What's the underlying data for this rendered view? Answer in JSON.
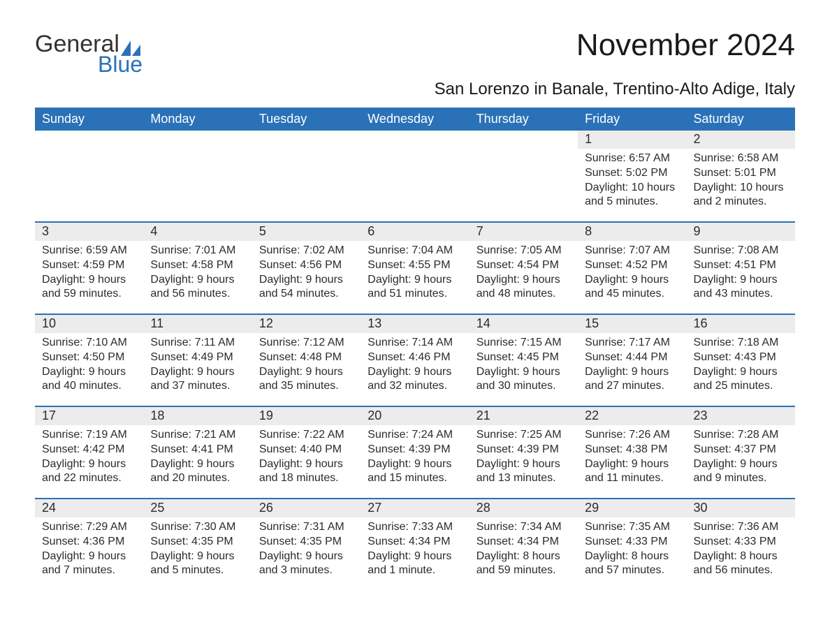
{
  "brand": {
    "general": "General",
    "blue": "Blue",
    "sail_color": "#2a71b8"
  },
  "header": {
    "title": "November 2024",
    "subtitle": "San Lorenzo in Banale, Trentino-Alto Adige, Italy"
  },
  "colors": {
    "header_bg": "#2a71b8",
    "header_text": "#ffffff",
    "daynum_bg": "#ececec",
    "body_text": "#2b2b2b",
    "page_bg": "#ffffff"
  },
  "dayNames": [
    "Sunday",
    "Monday",
    "Tuesday",
    "Wednesday",
    "Thursday",
    "Friday",
    "Saturday"
  ],
  "weeks": [
    [
      null,
      null,
      null,
      null,
      null,
      {
        "n": "1",
        "sr": "Sunrise: 6:57 AM",
        "ss": "Sunset: 5:02 PM",
        "dl": "Daylight: 10 hours and 5 minutes."
      },
      {
        "n": "2",
        "sr": "Sunrise: 6:58 AM",
        "ss": "Sunset: 5:01 PM",
        "dl": "Daylight: 10 hours and 2 minutes."
      }
    ],
    [
      {
        "n": "3",
        "sr": "Sunrise: 6:59 AM",
        "ss": "Sunset: 4:59 PM",
        "dl": "Daylight: 9 hours and 59 minutes."
      },
      {
        "n": "4",
        "sr": "Sunrise: 7:01 AM",
        "ss": "Sunset: 4:58 PM",
        "dl": "Daylight: 9 hours and 56 minutes."
      },
      {
        "n": "5",
        "sr": "Sunrise: 7:02 AM",
        "ss": "Sunset: 4:56 PM",
        "dl": "Daylight: 9 hours and 54 minutes."
      },
      {
        "n": "6",
        "sr": "Sunrise: 7:04 AM",
        "ss": "Sunset: 4:55 PM",
        "dl": "Daylight: 9 hours and 51 minutes."
      },
      {
        "n": "7",
        "sr": "Sunrise: 7:05 AM",
        "ss": "Sunset: 4:54 PM",
        "dl": "Daylight: 9 hours and 48 minutes."
      },
      {
        "n": "8",
        "sr": "Sunrise: 7:07 AM",
        "ss": "Sunset: 4:52 PM",
        "dl": "Daylight: 9 hours and 45 minutes."
      },
      {
        "n": "9",
        "sr": "Sunrise: 7:08 AM",
        "ss": "Sunset: 4:51 PM",
        "dl": "Daylight: 9 hours and 43 minutes."
      }
    ],
    [
      {
        "n": "10",
        "sr": "Sunrise: 7:10 AM",
        "ss": "Sunset: 4:50 PM",
        "dl": "Daylight: 9 hours and 40 minutes."
      },
      {
        "n": "11",
        "sr": "Sunrise: 7:11 AM",
        "ss": "Sunset: 4:49 PM",
        "dl": "Daylight: 9 hours and 37 minutes."
      },
      {
        "n": "12",
        "sr": "Sunrise: 7:12 AM",
        "ss": "Sunset: 4:48 PM",
        "dl": "Daylight: 9 hours and 35 minutes."
      },
      {
        "n": "13",
        "sr": "Sunrise: 7:14 AM",
        "ss": "Sunset: 4:46 PM",
        "dl": "Daylight: 9 hours and 32 minutes."
      },
      {
        "n": "14",
        "sr": "Sunrise: 7:15 AM",
        "ss": "Sunset: 4:45 PM",
        "dl": "Daylight: 9 hours and 30 minutes."
      },
      {
        "n": "15",
        "sr": "Sunrise: 7:17 AM",
        "ss": "Sunset: 4:44 PM",
        "dl": "Daylight: 9 hours and 27 minutes."
      },
      {
        "n": "16",
        "sr": "Sunrise: 7:18 AM",
        "ss": "Sunset: 4:43 PM",
        "dl": "Daylight: 9 hours and 25 minutes."
      }
    ],
    [
      {
        "n": "17",
        "sr": "Sunrise: 7:19 AM",
        "ss": "Sunset: 4:42 PM",
        "dl": "Daylight: 9 hours and 22 minutes."
      },
      {
        "n": "18",
        "sr": "Sunrise: 7:21 AM",
        "ss": "Sunset: 4:41 PM",
        "dl": "Daylight: 9 hours and 20 minutes."
      },
      {
        "n": "19",
        "sr": "Sunrise: 7:22 AM",
        "ss": "Sunset: 4:40 PM",
        "dl": "Daylight: 9 hours and 18 minutes."
      },
      {
        "n": "20",
        "sr": "Sunrise: 7:24 AM",
        "ss": "Sunset: 4:39 PM",
        "dl": "Daylight: 9 hours and 15 minutes."
      },
      {
        "n": "21",
        "sr": "Sunrise: 7:25 AM",
        "ss": "Sunset: 4:39 PM",
        "dl": "Daylight: 9 hours and 13 minutes."
      },
      {
        "n": "22",
        "sr": "Sunrise: 7:26 AM",
        "ss": "Sunset: 4:38 PM",
        "dl": "Daylight: 9 hours and 11 minutes."
      },
      {
        "n": "23",
        "sr": "Sunrise: 7:28 AM",
        "ss": "Sunset: 4:37 PM",
        "dl": "Daylight: 9 hours and 9 minutes."
      }
    ],
    [
      {
        "n": "24",
        "sr": "Sunrise: 7:29 AM",
        "ss": "Sunset: 4:36 PM",
        "dl": "Daylight: 9 hours and 7 minutes."
      },
      {
        "n": "25",
        "sr": "Sunrise: 7:30 AM",
        "ss": "Sunset: 4:35 PM",
        "dl": "Daylight: 9 hours and 5 minutes."
      },
      {
        "n": "26",
        "sr": "Sunrise: 7:31 AM",
        "ss": "Sunset: 4:35 PM",
        "dl": "Daylight: 9 hours and 3 minutes."
      },
      {
        "n": "27",
        "sr": "Sunrise: 7:33 AM",
        "ss": "Sunset: 4:34 PM",
        "dl": "Daylight: 9 hours and 1 minute."
      },
      {
        "n": "28",
        "sr": "Sunrise: 7:34 AM",
        "ss": "Sunset: 4:34 PM",
        "dl": "Daylight: 8 hours and 59 minutes."
      },
      {
        "n": "29",
        "sr": "Sunrise: 7:35 AM",
        "ss": "Sunset: 4:33 PM",
        "dl": "Daylight: 8 hours and 57 minutes."
      },
      {
        "n": "30",
        "sr": "Sunrise: 7:36 AM",
        "ss": "Sunset: 4:33 PM",
        "dl": "Daylight: 8 hours and 56 minutes."
      }
    ]
  ]
}
